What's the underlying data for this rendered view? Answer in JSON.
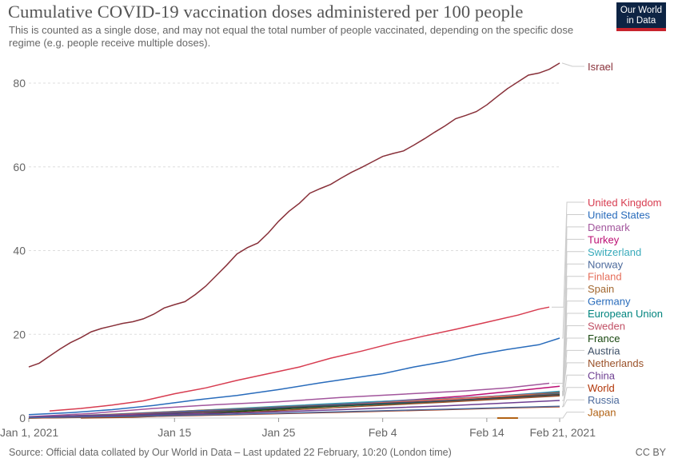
{
  "header": {
    "title": "Cumulative COVID-19 vaccination doses administered per 100 people",
    "subtitle": "This is counted as a single dose, and may not equal the total number of people vaccinated, depending on the specific dose regime (e.g. people receive multiple doses).",
    "logo_line1": "Our World",
    "logo_line2": "in Data"
  },
  "footer": {
    "source": "Source: Official data collated by Our World in Data – Last updated 22 February, 10:20 (London time)",
    "license": "CC BY"
  },
  "chart_data": {
    "type": "line",
    "x_tick_labels": [
      "Jan 1, 2021",
      "Jan 15",
      "Jan 25",
      "Feb 4",
      "Feb 14",
      "Feb 21, 2021"
    ],
    "x_tick_days": [
      0,
      14,
      24,
      34,
      44,
      51
    ],
    "x_range_days": [
      0,
      51
    ],
    "ylim": [
      0,
      85
    ],
    "y_ticks": [
      0,
      20,
      40,
      60,
      80
    ],
    "grid": "horizontal dashed",
    "legend": "line-end labels on right",
    "series": [
      {
        "name": "Israel",
        "color": "#883039",
        "points": [
          [
            0,
            12.2
          ],
          [
            1,
            13.1
          ],
          [
            2,
            14.8
          ],
          [
            3,
            16.5
          ],
          [
            4,
            18.0
          ],
          [
            5,
            19.2
          ],
          [
            6,
            20.6
          ],
          [
            7,
            21.4
          ],
          [
            8,
            22.0
          ],
          [
            9,
            22.6
          ],
          [
            10,
            23.0
          ],
          [
            11,
            23.7
          ],
          [
            12,
            24.8
          ],
          [
            13,
            26.3
          ],
          [
            14,
            27.1
          ],
          [
            15,
            27.8
          ],
          [
            16,
            29.5
          ],
          [
            17,
            31.5
          ],
          [
            18,
            34.0
          ],
          [
            19,
            36.5
          ],
          [
            20,
            39.2
          ],
          [
            21,
            40.7
          ],
          [
            22,
            41.8
          ],
          [
            23,
            44.2
          ],
          [
            24,
            47.0
          ],
          [
            25,
            49.4
          ],
          [
            26,
            51.3
          ],
          [
            27,
            53.7
          ],
          [
            28,
            54.8
          ],
          [
            29,
            55.8
          ],
          [
            30,
            57.3
          ],
          [
            31,
            58.7
          ],
          [
            32,
            59.9
          ],
          [
            33,
            61.2
          ],
          [
            34,
            62.5
          ],
          [
            35,
            63.2
          ],
          [
            36,
            63.8
          ],
          [
            37,
            65.2
          ],
          [
            38,
            66.7
          ],
          [
            39,
            68.3
          ],
          [
            40,
            69.8
          ],
          [
            41,
            71.5
          ],
          [
            42,
            72.3
          ],
          [
            43,
            73.2
          ],
          [
            44,
            74.8
          ],
          [
            45,
            76.8
          ],
          [
            46,
            78.7
          ],
          [
            47,
            80.3
          ],
          [
            48,
            81.9
          ],
          [
            49,
            82.4
          ],
          [
            50,
            83.3
          ],
          [
            51,
            84.8
          ]
        ]
      },
      {
        "name": "United Kingdom",
        "color": "#d73c50",
        "points": [
          [
            2,
            1.7
          ],
          [
            5,
            2.3
          ],
          [
            8,
            3.1
          ],
          [
            11,
            4.1
          ],
          [
            14,
            5.8
          ],
          [
            17,
            7.2
          ],
          [
            20,
            9.0
          ],
          [
            23,
            10.6
          ],
          [
            26,
            12.2
          ],
          [
            29,
            14.3
          ],
          [
            32,
            16.0
          ],
          [
            35,
            17.9
          ],
          [
            38,
            19.6
          ],
          [
            41,
            21.2
          ],
          [
            44,
            22.9
          ],
          [
            47,
            24.6
          ],
          [
            49,
            26.0
          ],
          [
            50,
            26.5
          ]
        ]
      },
      {
        "name": "United States",
        "color": "#286bbb",
        "points": [
          [
            0,
            0.8
          ],
          [
            4,
            1.3
          ],
          [
            8,
            2.0
          ],
          [
            12,
            3.0
          ],
          [
            16,
            4.3
          ],
          [
            20,
            5.4
          ],
          [
            24,
            6.8
          ],
          [
            28,
            8.4
          ],
          [
            31,
            9.5
          ],
          [
            34,
            10.6
          ],
          [
            37,
            12.2
          ],
          [
            40,
            13.5
          ],
          [
            43,
            15.1
          ],
          [
            46,
            16.4
          ],
          [
            49,
            17.5
          ],
          [
            51,
            19.1
          ]
        ]
      },
      {
        "name": "Denmark",
        "color": "#a2559c",
        "points": [
          [
            0,
            0.3
          ],
          [
            6,
            1.1
          ],
          [
            12,
            2.3
          ],
          [
            18,
            3.2
          ],
          [
            24,
            3.9
          ],
          [
            30,
            4.9
          ],
          [
            36,
            5.7
          ],
          [
            42,
            6.5
          ],
          [
            46,
            7.2
          ],
          [
            50,
            8.3
          ]
        ]
      },
      {
        "name": "Turkey",
        "color": "#bc0e73",
        "points": [
          [
            13,
            0.8
          ],
          [
            17,
            1.6
          ],
          [
            22,
            2.3
          ],
          [
            27,
            3.0
          ],
          [
            32,
            3.7
          ],
          [
            37,
            4.4
          ],
          [
            42,
            5.3
          ],
          [
            46,
            6.3
          ],
          [
            51,
            7.6
          ]
        ]
      },
      {
        "name": "Switzerland",
        "color": "#38aaba",
        "points": [
          [
            0,
            0.2
          ],
          [
            8,
            0.8
          ],
          [
            16,
            1.8
          ],
          [
            24,
            2.8
          ],
          [
            32,
            3.8
          ],
          [
            38,
            4.4
          ],
          [
            44,
            5.1
          ],
          [
            48,
            5.8
          ],
          [
            51,
            6.4
          ]
        ]
      },
      {
        "name": "Norway",
        "color": "#4c6a9c",
        "points": [
          [
            0,
            0.1
          ],
          [
            8,
            0.6
          ],
          [
            16,
            1.5
          ],
          [
            24,
            2.7
          ],
          [
            32,
            3.6
          ],
          [
            40,
            4.6
          ],
          [
            46,
            5.4
          ],
          [
            51,
            6.2
          ]
        ]
      },
      {
        "name": "Finland",
        "color": "#e56e5a",
        "points": [
          [
            0,
            0.1
          ],
          [
            8,
            0.4
          ],
          [
            16,
            1.2
          ],
          [
            24,
            2.3
          ],
          [
            32,
            3.4
          ],
          [
            40,
            4.5
          ],
          [
            46,
            5.3
          ],
          [
            51,
            6.0
          ]
        ]
      },
      {
        "name": "Spain",
        "color": "#a2672f",
        "points": [
          [
            0,
            0.2
          ],
          [
            8,
            0.9
          ],
          [
            16,
            1.8
          ],
          [
            24,
            2.6
          ],
          [
            32,
            3.3
          ],
          [
            40,
            4.0
          ],
          [
            46,
            5.0
          ],
          [
            51,
            6.1
          ]
        ]
      },
      {
        "name": "Germany",
        "color": "#286bbb",
        "points": [
          [
            0,
            0.2
          ],
          [
            8,
            0.8
          ],
          [
            16,
            1.7
          ],
          [
            24,
            2.5
          ],
          [
            32,
            3.2
          ],
          [
            40,
            4.0
          ],
          [
            46,
            4.9
          ],
          [
            51,
            5.9
          ]
        ]
      },
      {
        "name": "European Union",
        "color": "#00847e",
        "points": [
          [
            0,
            0.1
          ],
          [
            8,
            0.6
          ],
          [
            16,
            1.5
          ],
          [
            24,
            2.3
          ],
          [
            32,
            3.1
          ],
          [
            40,
            3.9
          ],
          [
            46,
            4.8
          ],
          [
            51,
            5.8
          ]
        ]
      },
      {
        "name": "Sweden",
        "color": "#c15065",
        "points": [
          [
            0,
            0.1
          ],
          [
            8,
            0.7
          ],
          [
            16,
            1.5
          ],
          [
            24,
            2.4
          ],
          [
            32,
            3.3
          ],
          [
            40,
            4.2
          ],
          [
            46,
            5.0
          ],
          [
            51,
            5.7
          ]
        ]
      },
      {
        "name": "France",
        "color": "#18470f",
        "points": [
          [
            0,
            0.0
          ],
          [
            8,
            0.3
          ],
          [
            16,
            1.0
          ],
          [
            24,
            2.1
          ],
          [
            32,
            3.2
          ],
          [
            40,
            4.1
          ],
          [
            46,
            4.9
          ],
          [
            51,
            5.6
          ]
        ]
      },
      {
        "name": "Austria",
        "color": "#3c4e66",
        "points": [
          [
            0,
            0.1
          ],
          [
            8,
            0.5
          ],
          [
            16,
            1.4
          ],
          [
            24,
            2.4
          ],
          [
            32,
            3.3
          ],
          [
            40,
            4.1
          ],
          [
            46,
            4.8
          ],
          [
            51,
            5.5
          ]
        ]
      },
      {
        "name": "Netherlands",
        "color": "#9a5129",
        "points": [
          [
            5,
            0.0
          ],
          [
            10,
            0.2
          ],
          [
            16,
            0.8
          ],
          [
            24,
            1.8
          ],
          [
            32,
            2.8
          ],
          [
            40,
            3.8
          ],
          [
            46,
            4.6
          ],
          [
            51,
            5.3
          ]
        ]
      },
      {
        "name": "China",
        "color": "#6d3e91",
        "points": [
          [
            0,
            0.3
          ],
          [
            10,
            0.7
          ],
          [
            20,
            1.2
          ],
          [
            30,
            2.0
          ],
          [
            40,
            2.9
          ],
          [
            46,
            3.6
          ],
          [
            51,
            4.2
          ]
        ]
      },
      {
        "name": "World",
        "color": "#b13507",
        "points": [
          [
            0,
            0.0
          ],
          [
            10,
            0.3
          ],
          [
            20,
            0.8
          ],
          [
            30,
            1.4
          ],
          [
            40,
            2.0
          ],
          [
            46,
            2.4
          ],
          [
            51,
            2.7
          ]
        ]
      },
      {
        "name": "Russia",
        "color": "#4c6a9c",
        "points": [
          [
            0,
            0.1
          ],
          [
            10,
            0.4
          ],
          [
            20,
            0.9
          ],
          [
            30,
            1.5
          ],
          [
            40,
            2.1
          ],
          [
            46,
            2.5
          ],
          [
            51,
            2.8
          ]
        ]
      },
      {
        "name": "Japan",
        "color": "#b16214",
        "points": [
          [
            45,
            0.0
          ],
          [
            47,
            0.0
          ]
        ]
      }
    ]
  }
}
